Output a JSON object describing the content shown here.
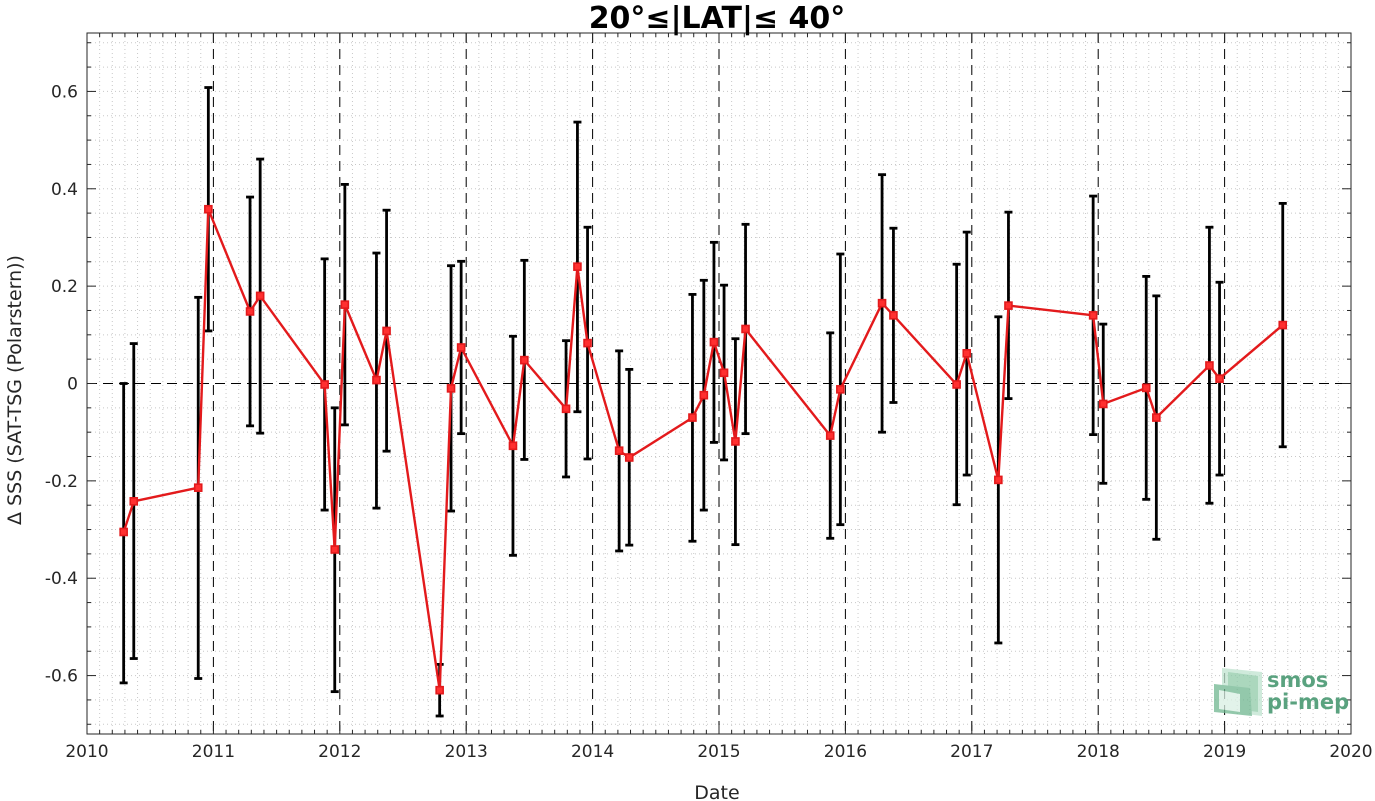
{
  "chart_data": {
    "type": "scatter",
    "title": "20°≤|LAT|≤ 40°",
    "xlabel": "Date",
    "ylabel": "Δ SSS (SAT-TSG (Polarstern))",
    "xlim": [
      2010,
      2020
    ],
    "ylim": [
      -0.72,
      0.72
    ],
    "x_ticks": [
      "2010",
      "2011",
      "2012",
      "2013",
      "2014",
      "2015",
      "2016",
      "2017",
      "2018",
      "2019",
      "2020"
    ],
    "y_ticks": [
      "0.6",
      "0.4",
      "0.2",
      "0",
      "-0.2",
      "-0.4",
      "-0.6"
    ],
    "y_tick_values": [
      0.6,
      0.4,
      0.2,
      0,
      -0.2,
      -0.4,
      -0.6
    ],
    "grid": "dotted minor, dashed vertical at each year, dashed horizontal at 0",
    "series": [
      {
        "color": "#e31a1c",
        "marker": "square",
        "errorbar_color": "#000000",
        "points": [
          {
            "x": 2010.29,
            "y": -0.305,
            "lo": -0.615,
            "hi": 0.0
          },
          {
            "x": 2010.37,
            "y": -0.242,
            "lo": -0.565,
            "hi": 0.082
          },
          {
            "x": 2010.88,
            "y": -0.214,
            "lo": -0.606,
            "hi": 0.177
          },
          {
            "x": 2010.96,
            "y": 0.358,
            "lo": 0.108,
            "hi": 0.608
          },
          {
            "x": 2011.29,
            "y": 0.148,
            "lo": -0.087,
            "hi": 0.383
          },
          {
            "x": 2011.37,
            "y": 0.18,
            "lo": -0.102,
            "hi": 0.461
          },
          {
            "x": 2011.88,
            "y": -0.002,
            "lo": -0.26,
            "hi": 0.256
          },
          {
            "x": 2011.96,
            "y": -0.341,
            "lo": -0.633,
            "hi": -0.05
          },
          {
            "x": 2012.04,
            "y": 0.162,
            "lo": -0.085,
            "hi": 0.409
          },
          {
            "x": 2012.29,
            "y": 0.007,
            "lo": -0.256,
            "hi": 0.268
          },
          {
            "x": 2012.37,
            "y": 0.108,
            "lo": -0.139,
            "hi": 0.356
          },
          {
            "x": 2012.79,
            "y": -0.63,
            "lo": -0.683,
            "hi": -0.577
          },
          {
            "x": 2012.88,
            "y": -0.01,
            "lo": -0.262,
            "hi": 0.242
          },
          {
            "x": 2012.96,
            "y": 0.074,
            "lo": -0.103,
            "hi": 0.251
          },
          {
            "x": 2013.37,
            "y": -0.128,
            "lo": -0.353,
            "hi": 0.097
          },
          {
            "x": 2013.46,
            "y": 0.048,
            "lo": -0.156,
            "hi": 0.253
          },
          {
            "x": 2013.79,
            "y": -0.052,
            "lo": -0.192,
            "hi": 0.088
          },
          {
            "x": 2013.88,
            "y": 0.24,
            "lo": -0.058,
            "hi": 0.537
          },
          {
            "x": 2013.96,
            "y": 0.083,
            "lo": -0.155,
            "hi": 0.321
          },
          {
            "x": 2014.21,
            "y": -0.138,
            "lo": -0.344,
            "hi": 0.067
          },
          {
            "x": 2014.29,
            "y": -0.152,
            "lo": -0.332,
            "hi": 0.029
          },
          {
            "x": 2014.79,
            "y": -0.07,
            "lo": -0.324,
            "hi": 0.183
          },
          {
            "x": 2014.88,
            "y": -0.024,
            "lo": -0.26,
            "hi": 0.212
          },
          {
            "x": 2014.96,
            "y": 0.085,
            "lo": -0.121,
            "hi": 0.29
          },
          {
            "x": 2015.04,
            "y": 0.022,
            "lo": -0.157,
            "hi": 0.202
          },
          {
            "x": 2015.13,
            "y": -0.119,
            "lo": -0.331,
            "hi": 0.092
          },
          {
            "x": 2015.21,
            "y": 0.112,
            "lo": -0.103,
            "hi": 0.327
          },
          {
            "x": 2015.88,
            "y": -0.107,
            "lo": -0.318,
            "hi": 0.104
          },
          {
            "x": 2015.96,
            "y": -0.012,
            "lo": -0.29,
            "hi": 0.266
          },
          {
            "x": 2016.29,
            "y": 0.165,
            "lo": -0.1,
            "hi": 0.429
          },
          {
            "x": 2016.38,
            "y": 0.14,
            "lo": -0.039,
            "hi": 0.319
          },
          {
            "x": 2016.88,
            "y": -0.002,
            "lo": -0.249,
            "hi": 0.245
          },
          {
            "x": 2016.96,
            "y": 0.062,
            "lo": -0.188,
            "hi": 0.311
          },
          {
            "x": 2017.21,
            "y": -0.198,
            "lo": -0.533,
            "hi": 0.137
          },
          {
            "x": 2017.29,
            "y": 0.16,
            "lo": -0.031,
            "hi": 0.352
          },
          {
            "x": 2017.96,
            "y": 0.14,
            "lo": -0.105,
            "hi": 0.385
          },
          {
            "x": 2018.04,
            "y": -0.042,
            "lo": -0.205,
            "hi": 0.122
          },
          {
            "x": 2018.38,
            "y": -0.009,
            "lo": -0.238,
            "hi": 0.22
          },
          {
            "x": 2018.46,
            "y": -0.07,
            "lo": -0.32,
            "hi": 0.18
          },
          {
            "x": 2018.88,
            "y": 0.037,
            "lo": -0.246,
            "hi": 0.321
          },
          {
            "x": 2018.96,
            "y": 0.01,
            "lo": -0.188,
            "hi": 0.208
          },
          {
            "x": 2019.46,
            "y": 0.12,
            "lo": -0.13,
            "hi": 0.37
          }
        ]
      }
    ]
  },
  "logo": {
    "line1": "smos",
    "line2": "pi-mep",
    "color": "#5aa27f"
  }
}
